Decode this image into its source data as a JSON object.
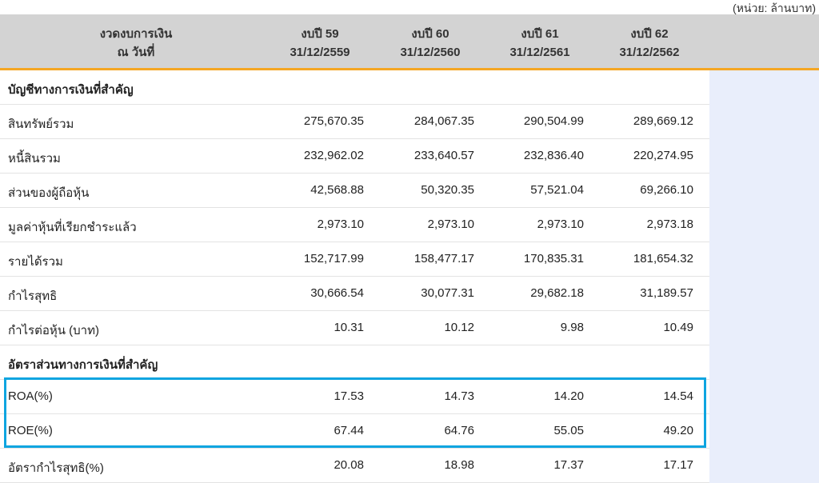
{
  "unit_note": "(หน่วย: ล้านบาท)",
  "header": {
    "label_line1": "งวดงบการเงิน",
    "label_line2": "ณ วันที่",
    "columns": [
      {
        "year": "งบปี 59",
        "date": "31/12/2559"
      },
      {
        "year": "งบปี 60",
        "date": "31/12/2560"
      },
      {
        "year": "งบปี 61",
        "date": "31/12/2561"
      },
      {
        "year": "งบปี 62",
        "date": "31/12/2562"
      }
    ]
  },
  "rows": [
    {
      "label": "บัญชีทางการเงินที่สำคัญ",
      "section": true,
      "values": []
    },
    {
      "label": "สินทรัพย์รวม",
      "values": [
        "275,670.35",
        "284,067.35",
        "290,504.99",
        "289,669.12"
      ]
    },
    {
      "label": "หนี้สินรวม",
      "values": [
        "232,962.02",
        "233,640.57",
        "232,836.40",
        "220,274.95"
      ]
    },
    {
      "label": "ส่วนของผู้ถือหุ้น",
      "values": [
        "42,568.88",
        "50,320.35",
        "57,521.04",
        "69,266.10"
      ]
    },
    {
      "label": "มูลค่าหุ้นที่เรียกชำระแล้ว",
      "values": [
        "2,973.10",
        "2,973.10",
        "2,973.10",
        "2,973.18"
      ]
    },
    {
      "label": "รายได้รวม",
      "values": [
        "152,717.99",
        "158,477.17",
        "170,835.31",
        "181,654.32"
      ]
    },
    {
      "label": "กำไรสุทธิ",
      "values": [
        "30,666.54",
        "30,077.31",
        "29,682.18",
        "31,189.57"
      ]
    },
    {
      "label": "กำไรต่อหุ้น (บาท)",
      "values": [
        "10.31",
        "10.12",
        "9.98",
        "10.49"
      ]
    },
    {
      "label": "อัตราส่วนทางการเงินที่สำคัญ",
      "section": true,
      "values": []
    },
    {
      "label": "ROA(%)",
      "values": [
        "17.53",
        "14.73",
        "14.20",
        "14.54"
      ]
    },
    {
      "label": "ROE(%)",
      "values": [
        "67.44",
        "64.76",
        "55.05",
        "49.20"
      ]
    },
    {
      "label": "อัตรากำไรสุทธิ(%)",
      "values": [
        "20.08",
        "18.98",
        "17.37",
        "17.17"
      ]
    }
  ],
  "colors": {
    "header_bg": "#d3d3d3",
    "accent": "#f5a623",
    "highlight": "#0ea5e0",
    "extra_col": "#e9eefb"
  }
}
